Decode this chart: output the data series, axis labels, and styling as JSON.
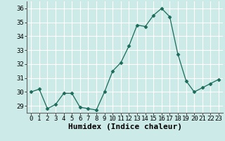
{
  "xlabel": "Humidex (Indice chaleur)",
  "x": [
    0,
    1,
    2,
    3,
    4,
    5,
    6,
    7,
    8,
    9,
    10,
    11,
    12,
    13,
    14,
    15,
    16,
    17,
    18,
    19,
    20,
    21,
    22,
    23
  ],
  "y": [
    30.0,
    30.2,
    28.8,
    29.1,
    29.9,
    29.9,
    28.9,
    28.8,
    28.7,
    30.0,
    31.5,
    32.1,
    33.3,
    34.8,
    34.7,
    35.5,
    36.0,
    35.4,
    32.7,
    30.8,
    30.0,
    30.3,
    30.6,
    30.9
  ],
  "ylim": [
    28.5,
    36.5
  ],
  "yticks": [
    29,
    30,
    31,
    32,
    33,
    34,
    35,
    36
  ],
  "xlim": [
    -0.5,
    23.5
  ],
  "xticks": [
    0,
    1,
    2,
    3,
    4,
    5,
    6,
    7,
    8,
    9,
    10,
    11,
    12,
    13,
    14,
    15,
    16,
    17,
    18,
    19,
    20,
    21,
    22,
    23
  ],
  "line_color": "#1a6b5a",
  "marker": "D",
  "marker_size": 2.5,
  "bg_color": "#cceae7",
  "grid_color": "#ffffff",
  "tick_fontsize": 6.5,
  "xlabel_fontsize": 8,
  "spine_color": "#666666"
}
